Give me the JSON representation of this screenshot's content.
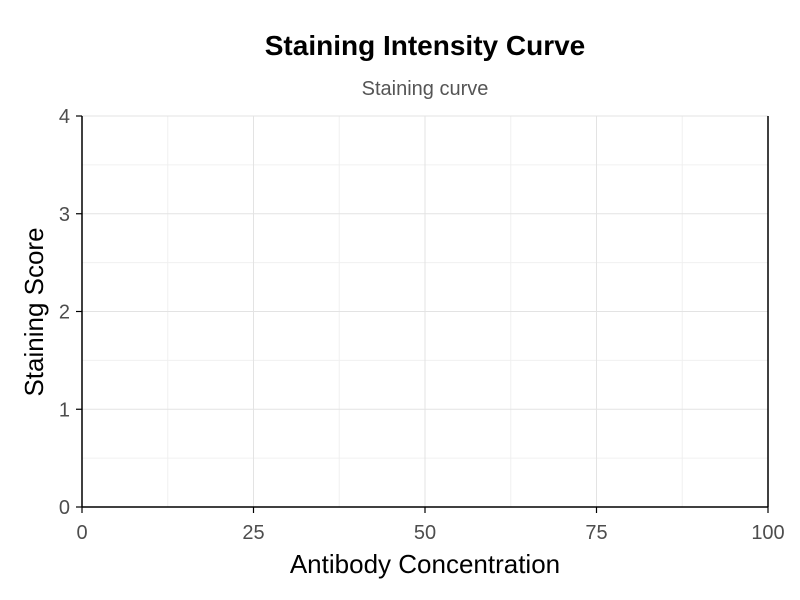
{
  "chart_data": {
    "type": "line",
    "title": "Staining Intensity Curve",
    "subtitle": "Staining curve",
    "xlabel": "Antibody Concentration",
    "ylabel": "Staining Score",
    "xlim": [
      0,
      100
    ],
    "ylim": [
      0,
      4
    ],
    "x_ticks": [
      0,
      25,
      50,
      75,
      100
    ],
    "y_ticks": [
      0,
      1,
      2,
      3,
      4
    ],
    "grid": true,
    "series": []
  },
  "colors": {
    "axis": "#000000",
    "grid_major": "#e3e3e3",
    "grid_minor": "#f0f0f0",
    "tick_text": "#4d4d4d"
  }
}
